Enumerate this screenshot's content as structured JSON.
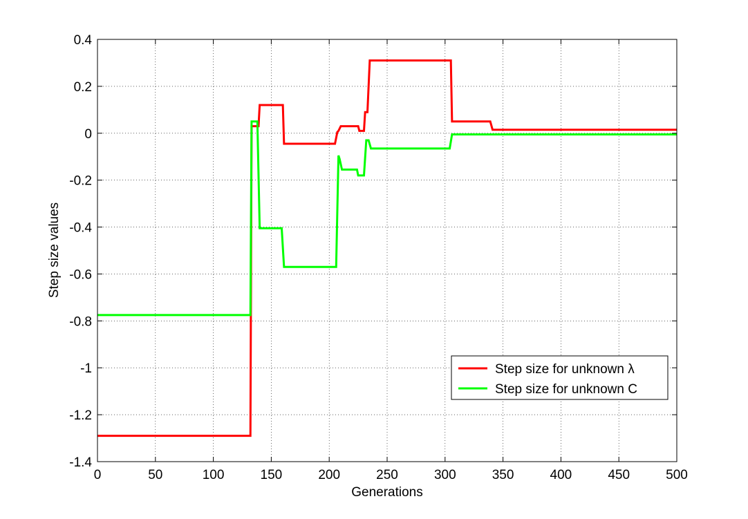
{
  "chart_data": {
    "type": "line",
    "title": "",
    "xlabel": "Generations",
    "ylabel": "Step size values",
    "xlim": [
      0,
      500
    ],
    "ylim": [
      -1.4,
      0.4
    ],
    "xticks": [
      0,
      50,
      100,
      150,
      200,
      250,
      300,
      350,
      400,
      450,
      500
    ],
    "yticks": [
      0.4,
      0.2,
      0,
      -0.2,
      -0.4,
      -0.6,
      -0.8,
      -1,
      -1.2,
      -1.4
    ],
    "xtick_labels": [
      "0",
      "50",
      "100",
      "150",
      "200",
      "250",
      "300",
      "350",
      "400",
      "450",
      "500"
    ],
    "ytick_labels": [
      "0.4",
      "0.2",
      "0",
      "-0.2",
      "-0.4",
      "-0.6",
      "-0.8",
      "-1",
      "-1.2",
      "-1.4"
    ],
    "grid": true,
    "legend_position": "lower-right",
    "series": [
      {
        "name": "Step size for unknown λ",
        "color": "#ff0000",
        "points": [
          [
            0,
            -1.29
          ],
          [
            132,
            -1.29
          ],
          [
            132.5,
            -0.63
          ],
          [
            133,
            0.03
          ],
          [
            139,
            0.03
          ],
          [
            140,
            0.12
          ],
          [
            160,
            0.12
          ],
          [
            161,
            -0.045
          ],
          [
            205,
            -0.045
          ],
          [
            207,
            0.005
          ],
          [
            208,
            0.01
          ],
          [
            210,
            0.03
          ],
          [
            225,
            0.03
          ],
          [
            226,
            0.01
          ],
          [
            230,
            0.01
          ],
          [
            231,
            0.09
          ],
          [
            233,
            0.09
          ],
          [
            235,
            0.31
          ],
          [
            305,
            0.31
          ],
          [
            306,
            0.05
          ],
          [
            339,
            0.05
          ],
          [
            341,
            0.015
          ],
          [
            500,
            0.015
          ]
        ]
      },
      {
        "name": "Step size for unknown C",
        "color": "#00ff00",
        "points": [
          [
            0,
            -0.775
          ],
          [
            132,
            -0.775
          ],
          [
            133,
            0.05
          ],
          [
            138,
            0.05
          ],
          [
            140,
            -0.405
          ],
          [
            159,
            -0.405
          ],
          [
            161,
            -0.57
          ],
          [
            206,
            -0.57
          ],
          [
            208,
            -0.095
          ],
          [
            209,
            -0.11
          ],
          [
            211,
            -0.155
          ],
          [
            224,
            -0.155
          ],
          [
            225,
            -0.18
          ],
          [
            230,
            -0.18
          ],
          [
            232,
            -0.03
          ],
          [
            234,
            -0.03
          ],
          [
            236,
            -0.065
          ],
          [
            304,
            -0.065
          ],
          [
            306,
            -0.005
          ],
          [
            500,
            -0.005
          ]
        ]
      }
    ]
  }
}
